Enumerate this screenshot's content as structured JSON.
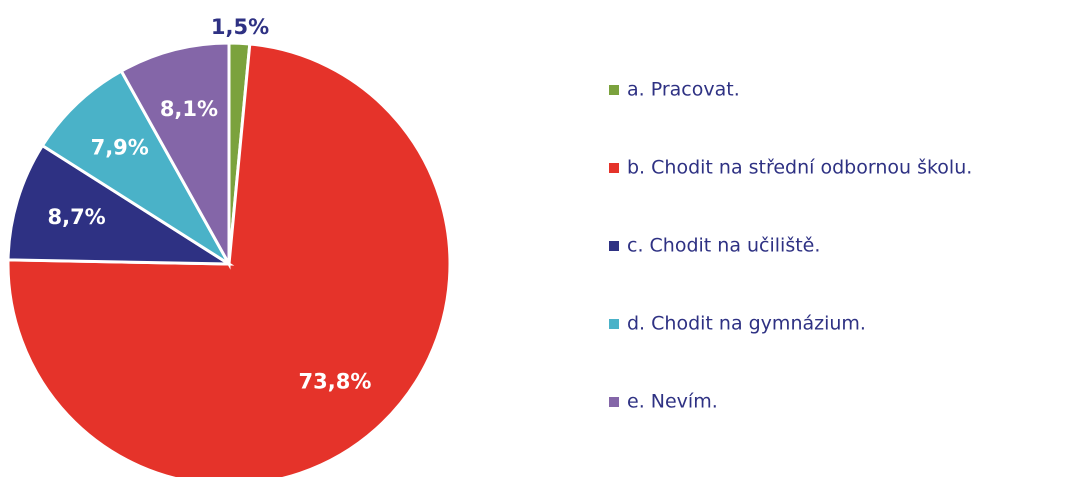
{
  "chart_data": {
    "type": "pie",
    "categories": [
      "a. Pracovat.",
      "b. Chodit na střední odbornou školu.",
      "c. Chodit na učiliště.",
      "d. Chodit na gymnázium.",
      "e. Nevím."
    ],
    "values": [
      1.5,
      73.8,
      8.7,
      7.9,
      8.1
    ],
    "value_labels": [
      "1,5%",
      "73,8%",
      "8,7%",
      "7,9%",
      "8,1%"
    ],
    "colors": [
      "#7ba23d",
      "#e5332a",
      "#2e3183",
      "#4ab2c8",
      "#8466a8"
    ],
    "legend": "right"
  }
}
